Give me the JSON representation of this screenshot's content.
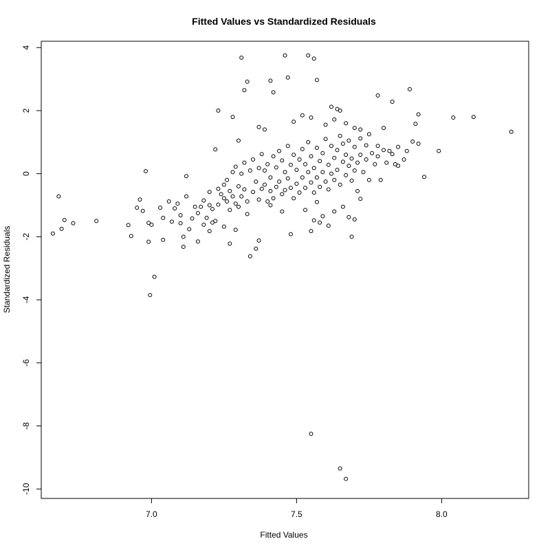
{
  "chart_data": {
    "type": "scatter",
    "title": "Fitted Values vs Standardized Residuals",
    "xlabel": "Fitted Values",
    "ylabel": "Standardized Residuals",
    "xlim": [
      6.62,
      8.3
    ],
    "ylim": [
      -10.3,
      4.2
    ],
    "xticks": [
      7.0,
      7.5,
      8.0
    ],
    "xtick_labels": [
      "7.0",
      "7.5",
      "8.0"
    ],
    "yticks": [
      4,
      2,
      0,
      -2,
      -4,
      -6,
      -8,
      -10
    ],
    "ytick_labels": [
      "4",
      "2",
      "0",
      "-2",
      "-4",
      "-6",
      "-8",
      "-10"
    ],
    "grid": false,
    "marker": "open-circle",
    "point_color": "#000000",
    "points": [
      [
        6.66,
        -1.9
      ],
      [
        6.68,
        -0.72
      ],
      [
        6.69,
        -1.75
      ],
      [
        6.7,
        -1.47
      ],
      [
        6.73,
        -1.57
      ],
      [
        6.81,
        -1.5
      ],
      [
        6.92,
        -1.63
      ],
      [
        6.93,
        -1.98
      ],
      [
        6.95,
        -1.08
      ],
      [
        6.96,
        -0.82
      ],
      [
        6.97,
        -1.18
      ],
      [
        6.98,
        0.08
      ],
      [
        6.99,
        -1.56
      ],
      [
        7.0,
        -1.62
      ],
      [
        6.99,
        -2.16
      ],
      [
        6.995,
        -3.85
      ],
      [
        7.01,
        -3.27
      ],
      [
        7.03,
        -1.08
      ],
      [
        7.04,
        -1.4
      ],
      [
        7.04,
        -2.1
      ],
      [
        7.06,
        -0.88
      ],
      [
        7.07,
        -1.52
      ],
      [
        7.08,
        -1.1
      ],
      [
        7.09,
        -0.95
      ],
      [
        7.1,
        -1.57
      ],
      [
        7.1,
        -1.32
      ],
      [
        7.11,
        -2.0
      ],
      [
        7.11,
        -2.32
      ],
      [
        7.12,
        -0.72
      ],
      [
        7.12,
        -0.08
      ],
      [
        7.13,
        -1.76
      ],
      [
        7.14,
        -1.42
      ],
      [
        7.15,
        -1.05
      ],
      [
        7.16,
        -2.15
      ],
      [
        7.16,
        -1.25
      ],
      [
        7.17,
        -1.05
      ],
      [
        7.18,
        -1.62
      ],
      [
        7.18,
        -0.85
      ],
      [
        7.19,
        -1.4
      ],
      [
        7.2,
        -0.58
      ],
      [
        7.2,
        -1.82
      ],
      [
        7.2,
        -1.0
      ],
      [
        7.21,
        -1.55
      ],
      [
        7.21,
        -1.12
      ],
      [
        7.22,
        0.77
      ],
      [
        7.22,
        -1.5
      ],
      [
        7.23,
        -0.48
      ],
      [
        7.23,
        -0.98
      ],
      [
        7.24,
        -0.65
      ],
      [
        7.25,
        -1.68
      ],
      [
        7.25,
        -0.35
      ],
      [
        7.25,
        -0.78
      ],
      [
        7.26,
        -0.2
      ],
      [
        7.26,
        -0.88
      ],
      [
        7.27,
        -1.15
      ],
      [
        7.27,
        -0.55
      ],
      [
        7.28,
        0.05
      ],
      [
        7.28,
        -0.72
      ],
      [
        7.29,
        -0.95
      ],
      [
        7.29,
        0.22
      ],
      [
        7.3,
        -0.4
      ],
      [
        7.3,
        -1.05
      ],
      [
        7.31,
        0.0
      ],
      [
        7.31,
        -0.72
      ],
      [
        7.32,
        0.35
      ],
      [
        7.32,
        -0.5
      ],
      [
        7.33,
        -0.88
      ],
      [
        7.33,
        -1.28
      ],
      [
        7.34,
        0.1
      ],
      [
        7.35,
        -0.58
      ],
      [
        7.35,
        0.45
      ],
      [
        7.36,
        -0.25
      ],
      [
        7.37,
        -0.82
      ],
      [
        7.37,
        0.18
      ],
      [
        7.38,
        -0.48
      ],
      [
        7.38,
        0.62
      ],
      [
        7.39,
        -0.35
      ],
      [
        7.39,
        0.1
      ],
      [
        7.4,
        -0.88
      ],
      [
        7.4,
        0.3
      ],
      [
        7.41,
        -0.55
      ],
      [
        7.41,
        -0.12
      ],
      [
        7.42,
        0.55
      ],
      [
        7.42,
        -0.78
      ],
      [
        7.43,
        0.2
      ],
      [
        7.43,
        -0.42
      ],
      [
        7.44,
        0.72
      ],
      [
        7.44,
        -0.25
      ],
      [
        7.45,
        -0.65
      ],
      [
        7.45,
        0.42
      ],
      [
        7.46,
        0.05
      ],
      [
        7.46,
        -0.52
      ],
      [
        7.47,
        0.88
      ],
      [
        7.47,
        -0.15
      ],
      [
        7.48,
        0.28
      ],
      [
        7.48,
        -0.45
      ],
      [
        7.49,
        -0.78
      ],
      [
        7.49,
        0.6
      ],
      [
        7.5,
        0.12
      ],
      [
        7.5,
        -0.32
      ],
      [
        7.51,
        0.45
      ],
      [
        7.51,
        -0.6
      ],
      [
        7.52,
        0.78
      ],
      [
        7.52,
        -0.12
      ],
      [
        7.53,
        0.3
      ],
      [
        7.53,
        -0.45
      ],
      [
        7.54,
        0.05
      ],
      [
        7.54,
        1.0
      ],
      [
        7.55,
        -0.28
      ],
      [
        7.55,
        0.55
      ],
      [
        7.56,
        -0.6
      ],
      [
        7.56,
        0.18
      ],
      [
        7.57,
        0.82
      ],
      [
        7.57,
        -0.12
      ],
      [
        7.58,
        0.4
      ],
      [
        7.58,
        -0.42
      ],
      [
        7.59,
        0.05
      ],
      [
        7.59,
        0.65
      ],
      [
        7.6,
        -0.25
      ],
      [
        7.6,
        1.1
      ],
      [
        7.61,
        0.28
      ],
      [
        7.61,
        -0.5
      ],
      [
        7.62,
        0.88
      ],
      [
        7.62,
        0.0
      ],
      [
        7.63,
        0.5
      ],
      [
        7.63,
        -0.2
      ],
      [
        7.64,
        0.75
      ],
      [
        7.64,
        0.12
      ],
      [
        7.65,
        1.2
      ],
      [
        7.65,
        -0.35
      ],
      [
        7.66,
        0.38
      ],
      [
        7.66,
        0.95
      ],
      [
        7.67,
        -0.05
      ],
      [
        7.67,
        0.6
      ],
      [
        7.68,
        0.25
      ],
      [
        7.68,
        1.05
      ],
      [
        7.69,
        -0.22
      ],
      [
        7.69,
        0.48
      ],
      [
        7.7,
        0.85
      ],
      [
        7.7,
        0.1
      ],
      [
        7.71,
        0.35
      ],
      [
        7.71,
        -0.55
      ],
      [
        7.72,
        0.6
      ],
      [
        7.72,
        1.12
      ],
      [
        7.73,
        0.05
      ],
      [
        7.74,
        0.45
      ],
      [
        7.74,
        0.9
      ],
      [
        7.75,
        -0.2
      ],
      [
        7.76,
        0.65
      ],
      [
        7.77,
        0.3
      ],
      [
        7.78,
        0.88
      ],
      [
        7.78,
        0.55
      ],
      [
        7.79,
        -0.2
      ],
      [
        7.8,
        0.75
      ],
      [
        7.81,
        0.35
      ],
      [
        7.82,
        0.72
      ],
      [
        7.83,
        0.62
      ],
      [
        7.84,
        0.3
      ],
      [
        7.85,
        0.25
      ],
      [
        7.87,
        0.45
      ],
      [
        7.88,
        0.72
      ],
      [
        7.9,
        1.02
      ],
      [
        7.92,
        0.95
      ],
      [
        7.94,
        -0.1
      ],
      [
        7.99,
        0.72
      ],
      [
        8.04,
        1.78
      ],
      [
        8.11,
        1.8
      ],
      [
        8.24,
        1.33
      ],
      [
        7.23,
        2.0
      ],
      [
        7.28,
        1.8
      ],
      [
        7.3,
        1.05
      ],
      [
        7.31,
        3.68
      ],
      [
        7.32,
        2.65
      ],
      [
        7.33,
        2.92
      ],
      [
        7.37,
        1.48
      ],
      [
        7.39,
        1.4
      ],
      [
        7.41,
        2.95
      ],
      [
        7.42,
        2.58
      ],
      [
        7.46,
        3.75
      ],
      [
        7.47,
        3.05
      ],
      [
        7.49,
        1.65
      ],
      [
        7.52,
        1.85
      ],
      [
        7.54,
        3.75
      ],
      [
        7.56,
        3.65
      ],
      [
        7.57,
        2.97
      ],
      [
        7.55,
        1.78
      ],
      [
        7.6,
        1.55
      ],
      [
        7.62,
        2.12
      ],
      [
        7.63,
        1.72
      ],
      [
        7.64,
        2.05
      ],
      [
        7.65,
        2.0
      ],
      [
        7.67,
        1.6
      ],
      [
        7.7,
        1.45
      ],
      [
        7.72,
        1.4
      ],
      [
        7.75,
        1.25
      ],
      [
        7.78,
        2.48
      ],
      [
        7.8,
        1.45
      ],
      [
        7.83,
        2.28
      ],
      [
        7.85,
        0.85
      ],
      [
        7.89,
        2.68
      ],
      [
        7.91,
        1.58
      ],
      [
        7.92,
        1.88
      ],
      [
        7.27,
        -2.22
      ],
      [
        7.29,
        -1.78
      ],
      [
        7.34,
        -2.62
      ],
      [
        7.36,
        -2.38
      ],
      [
        7.37,
        -2.12
      ],
      [
        7.41,
        -1.0
      ],
      [
        7.45,
        -1.2
      ],
      [
        7.48,
        -1.92
      ],
      [
        7.53,
        -1.15
      ],
      [
        7.55,
        -1.82
      ],
      [
        7.56,
        -1.48
      ],
      [
        7.57,
        -0.9
      ],
      [
        7.58,
        -1.55
      ],
      [
        7.59,
        -1.35
      ],
      [
        7.61,
        -1.65
      ],
      [
        7.63,
        -1.2
      ],
      [
        7.66,
        -1.05
      ],
      [
        7.68,
        -1.38
      ],
      [
        7.69,
        -2.0
      ],
      [
        7.7,
        -1.45
      ],
      [
        7.72,
        -0.8
      ],
      [
        7.55,
        -8.25
      ],
      [
        7.65,
        -9.35
      ],
      [
        7.67,
        -9.68
      ]
    ]
  }
}
